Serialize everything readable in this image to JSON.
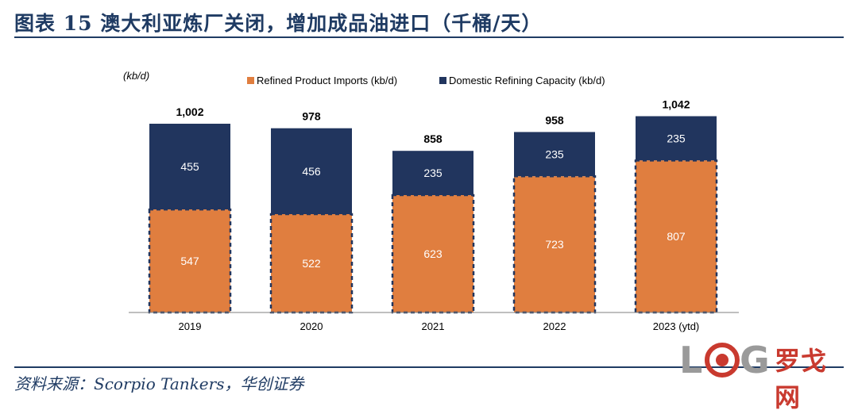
{
  "title": "图表 15   澳大利亚炼厂关闭，增加成品油进口（千桶/天）",
  "source": "资料来源：Scorpio Tankers，华创证券",
  "watermark": {
    "letters": "LOG",
    "text": "罗戈网"
  },
  "colors": {
    "imports": "#e07e3f",
    "capacity": "#21355e",
    "dash": "#21355e",
    "axis": "#7f7f7f",
    "title": "#1f3b63",
    "logo_red": "#c93a2f",
    "logo_gray": "#9a9a9a"
  },
  "chart_data": {
    "type": "bar",
    "stacked": true,
    "unit_label": "(kb/d)",
    "categories": [
      "2019",
      "2020",
      "2021",
      "2022",
      "2023 (ytd)"
    ],
    "series": [
      {
        "name": "Refined Product Imports (kb/d)",
        "values": [
          547,
          522,
          623,
          723,
          807
        ],
        "color": "#e07e3f"
      },
      {
        "name": "Domestic Refining Capacity (kb/d)",
        "values": [
          455,
          456,
          235,
          235,
          235
        ],
        "color": "#21355e"
      }
    ],
    "totals": [
      "1,002",
      "978",
      "858",
      "958",
      "1,042"
    ],
    "ylim": [
      0,
      1100
    ],
    "legend_position": "top",
    "grid": false
  }
}
